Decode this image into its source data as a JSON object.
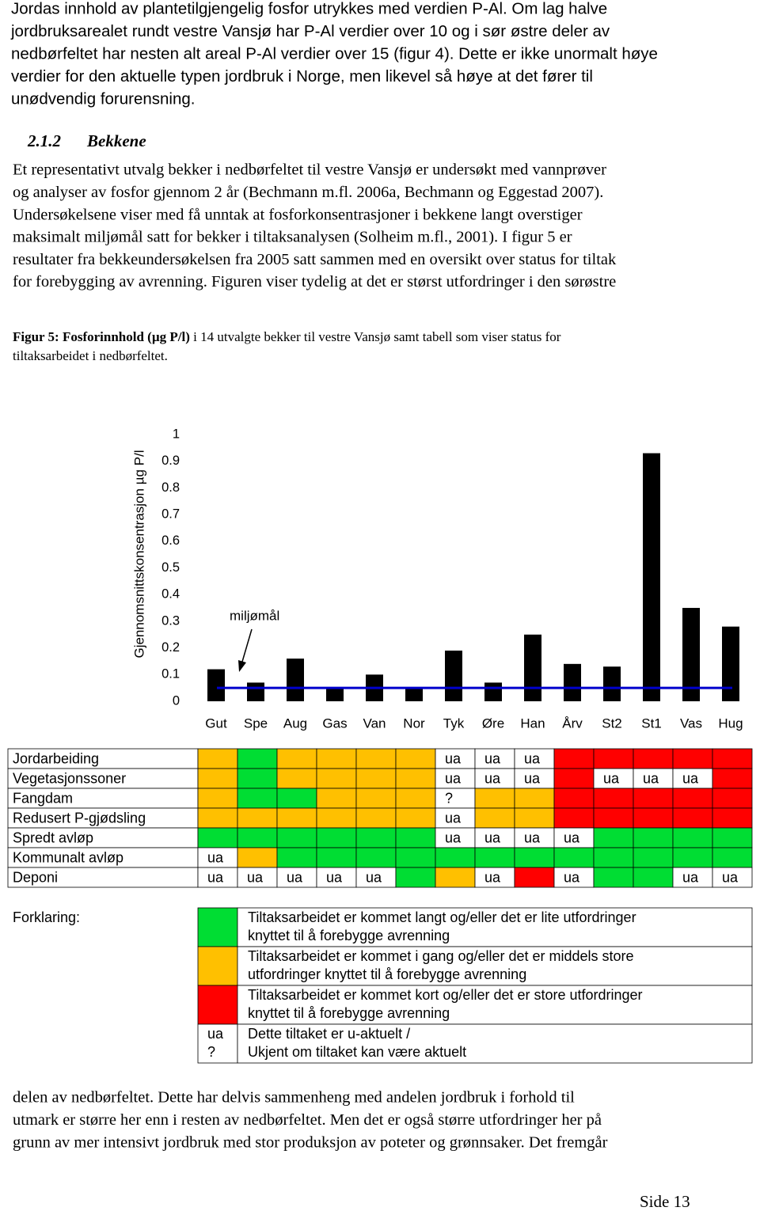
{
  "intro": {
    "lines": [
      "Jordas innhold av plantetilgjengelig fosfor utrykkes med verdien P-Al. Om lag halve",
      "jordbruksarealet rundt vestre Vansjø har P-Al verdier over 10 og i sør østre deler av",
      "nedbørfeltet har nesten alt areal P-Al verdier over 15 (figur 4). Dette er ikke unormalt høye",
      "verdier for den aktuelle typen jordbruk i Norge, men likevel så høye at det fører til",
      "unødvendig forurensning."
    ]
  },
  "section": {
    "number": "2.1.2",
    "title": "Bekkene"
  },
  "paragraph": {
    "lines": [
      "Et representativt utvalg bekker i nedbørfeltet til vestre Vansjø er undersøkt med vannprøver",
      "og analyser av fosfor gjennom 2 år (Bechmann m.fl. 2006a, Bechmann og Eggestad 2007).",
      "Undersøkelsene viser med få unntak at fosforkonsentrasjoner i bekkene langt overstiger",
      "maksimalt miljømål satt for bekker i tiltaksanalysen (Solheim m.fl., 2001). I figur 5 er",
      "resultater fra bekkeundersøkelsen fra 2005 satt sammen med en oversikt over status for tiltak",
      "for forebygging av avrenning. Figuren viser tydelig at det er størst utfordringer i den sørøstre"
    ]
  },
  "caption": {
    "bold": "Figur 5: Fosforinnhold (µg P/l)",
    "lines": [
      " i 14 utvalgte bekker til vestre Vansjø samt tabell som viser status for",
      "tiltaksarbeidet i nedbørfeltet."
    ]
  },
  "chart_data": {
    "type": "bar",
    "y_label": "Gjennomsnittskonsentrasjon µg P/l",
    "categories": [
      "Gut",
      "Spe",
      "Aug",
      "Gas",
      "Van",
      "Nor",
      "Tyk",
      "Øre",
      "Han",
      "Årv",
      "St2",
      "St1",
      "Vas",
      "Hug"
    ],
    "values": [
      0.12,
      0.07,
      0.16,
      0.05,
      0.1,
      0.05,
      0.19,
      0.07,
      0.25,
      0.14,
      0.13,
      0.93,
      0.35,
      0.28
    ],
    "color": "#000000",
    "ylim": [
      0,
      1
    ],
    "yticks": [
      0,
      0.1,
      0.2,
      0.3,
      0.4,
      0.5,
      0.6,
      0.7,
      0.8,
      0.9,
      1
    ],
    "target": {
      "label": "miljømål",
      "value": 0.05,
      "color": "#0000cc"
    }
  },
  "table": {
    "rows": [
      {
        "label": "Jordarbeiding",
        "cells": [
          {
            "color": "#ffc000"
          },
          {
            "color": "#00dd33"
          },
          {
            "color": "#ffc000"
          },
          {
            "color": "#ffc000"
          },
          {
            "color": "#ffc000"
          },
          {
            "color": "#ffc000"
          },
          {
            "label": "ua"
          },
          {
            "label": "ua"
          },
          {
            "label": "ua"
          },
          {
            "color": "#ff0000"
          },
          {
            "color": "#ff0000"
          },
          {
            "color": "#ff0000"
          },
          {
            "color": "#ff0000"
          },
          {
            "color": "#ff0000"
          }
        ]
      },
      {
        "label": "Vegetasjonssoner",
        "cells": [
          {
            "color": "#ffc000"
          },
          {
            "color": "#00dd33"
          },
          {
            "color": "#ffc000"
          },
          {
            "color": "#ffc000"
          },
          {
            "color": "#ffc000"
          },
          {
            "color": "#ffc000"
          },
          {
            "label": "ua"
          },
          {
            "label": "ua"
          },
          {
            "label": "ua"
          },
          {
            "color": "#ff0000"
          },
          {
            "label": "ua"
          },
          {
            "label": "ua"
          },
          {
            "label": "ua"
          },
          {
            "color": "#ff0000"
          }
        ]
      },
      {
        "label": "Fangdam",
        "cells": [
          {
            "color": "#ffc000"
          },
          {
            "color": "#00dd33"
          },
          {
            "color": "#00dd33"
          },
          {
            "color": "#ffc000"
          },
          {
            "color": "#ffc000"
          },
          {
            "color": "#ffc000"
          },
          {
            "label": "?"
          },
          {
            "color": "#ffc000"
          },
          {
            "color": "#ffc000"
          },
          {
            "color": "#ff0000"
          },
          {
            "color": "#ff0000"
          },
          {
            "color": "#ff0000"
          },
          {
            "color": "#ff0000"
          },
          {
            "color": "#ff0000"
          }
        ]
      },
      {
        "label": "Redusert P-gjødsling",
        "cells": [
          {
            "color": "#ffc000"
          },
          {
            "color": "#ffc000"
          },
          {
            "color": "#ffc000"
          },
          {
            "color": "#ffc000"
          },
          {
            "color": "#ffc000"
          },
          {
            "color": "#ffc000"
          },
          {
            "label": "ua"
          },
          {
            "color": "#ffc000"
          },
          {
            "color": "#ffc000"
          },
          {
            "color": "#ff0000"
          },
          {
            "color": "#ff0000"
          },
          {
            "color": "#ff0000"
          },
          {
            "color": "#ff0000"
          },
          {
            "color": "#ff0000"
          }
        ]
      },
      {
        "label": "Spredt avløp",
        "cells": [
          {
            "color": "#00dd33"
          },
          {
            "color": "#00dd33"
          },
          {
            "color": "#00dd33"
          },
          {
            "color": "#00dd33"
          },
          {
            "color": "#00dd33"
          },
          {
            "color": "#00dd33"
          },
          {
            "label": "ua"
          },
          {
            "label": "ua"
          },
          {
            "label": "ua"
          },
          {
            "label": "ua"
          },
          {
            "color": "#00dd33"
          },
          {
            "color": "#00dd33"
          },
          {
            "color": "#00dd33"
          },
          {
            "color": "#00dd33"
          }
        ]
      },
      {
        "label": "Kommunalt avløp",
        "cells": [
          {
            "label": "ua"
          },
          {
            "color": "#ffc000"
          },
          {
            "color": "#00dd33"
          },
          {
            "color": "#00dd33"
          },
          {
            "color": "#00dd33"
          },
          {
            "color": "#00dd33"
          },
          {
            "color": "#00dd33"
          },
          {
            "color": "#00dd33"
          },
          {
            "color": "#00dd33"
          },
          {
            "color": "#00dd33"
          },
          {
            "color": "#00dd33"
          },
          {
            "color": "#00dd33"
          },
          {
            "color": "#00dd33"
          },
          {
            "color": "#00dd33"
          }
        ]
      },
      {
        "label": "Deponi",
        "cells": [
          {
            "label": "ua"
          },
          {
            "label": "ua"
          },
          {
            "label": "ua"
          },
          {
            "label": "ua"
          },
          {
            "label": "ua"
          },
          {
            "color": "#00dd33"
          },
          {
            "color": "#ffc000"
          },
          {
            "label": "ua"
          },
          {
            "color": "#ff0000"
          },
          {
            "label": "ua"
          },
          {
            "color": "#00dd33"
          },
          {
            "color": "#00dd33"
          },
          {
            "label": "ua"
          },
          {
            "label": "ua"
          }
        ]
      }
    ]
  },
  "legend": {
    "title": "Forklaring:",
    "items": [
      {
        "color": "#00dd33",
        "lines": [
          "Tiltaksarbeidet er kommet langt og/eller det er lite utfordringer",
          "knyttet til å forebygge avrenning"
        ]
      },
      {
        "color": "#ffc000",
        "lines": [
          "Tiltaksarbeidet er kommet i gang og/eller det er middels store",
          "utfordringer knyttet til å forebygge avrenning"
        ]
      },
      {
        "color": "#ff0000",
        "lines": [
          "Tiltaksarbeidet er kommet kort og/eller det er store utfordringer",
          "knyttet til å forebygge avrenning"
        ]
      },
      {
        "symbols": [
          "ua",
          "?"
        ],
        "lines": [
          "Dette tiltaket er u-aktuelt /",
          "Ukjent om tiltaket kan være aktuelt"
        ]
      }
    ]
  },
  "closing": {
    "lines": [
      "delen av nedbørfeltet. Dette har delvis sammenheng med andelen jordbruk i forhold til",
      "utmark er større her enn i resten av nedbørfeltet. Men det er også større utfordringer her på",
      "grunn av mer intensivt jordbruk med stor produksjon av poteter og grønnsaker. Det fremgår"
    ]
  },
  "footer": {
    "page": "Side 13"
  }
}
